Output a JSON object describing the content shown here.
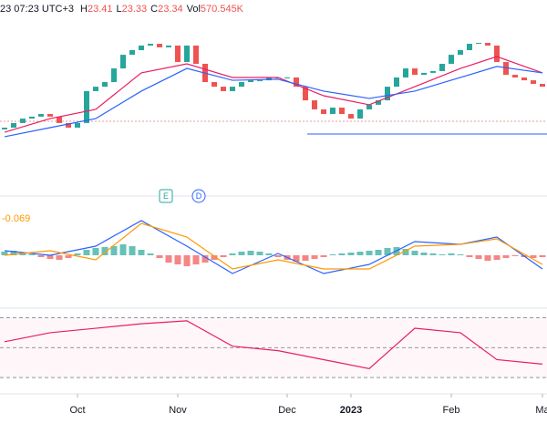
{
  "header": {
    "time": "23 07:23 UTC+3",
    "ohlc": [
      {
        "label": "H",
        "value": "23.41"
      },
      {
        "label": "L",
        "value": "23.33"
      },
      {
        "label": "C",
        "value": "23.34"
      },
      {
        "label": "Vol",
        "value": "570.545K"
      }
    ],
    "events": [
      "E",
      "D"
    ]
  },
  "chart_data": [
    {
      "type": "candlestick",
      "up_color": "#26a69a",
      "down_color": "#ef5350",
      "x": [
        0,
        1,
        2,
        3,
        4,
        5,
        6,
        7,
        8,
        9,
        10,
        11,
        12,
        13,
        14,
        15,
        16,
        17,
        18,
        19,
        20,
        21,
        22,
        23,
        24,
        25,
        26,
        27,
        28,
        29,
        30,
        31,
        32,
        33,
        34,
        35,
        36,
        37,
        38,
        39,
        40,
        41,
        42,
        43,
        44,
        45,
        46,
        47,
        48,
        49,
        50,
        51,
        52,
        53,
        54,
        55,
        56,
        57,
        58,
        59
      ],
      "open": [
        18.7,
        18.8,
        19.06,
        19.31,
        19.42,
        19.57,
        19.42,
        19.06,
        18.8,
        19.06,
        20.86,
        21.11,
        21.37,
        22.14,
        22.91,
        23.17,
        23.43,
        23.53,
        23.33,
        23.43,
        22.5,
        23.43,
        22.4,
        21.37,
        21.11,
        20.86,
        21.11,
        21.37,
        21.47,
        21.47,
        21.63,
        21.63,
        21.63,
        21.11,
        20.34,
        19.83,
        19.57,
        19.93,
        19.57,
        19.31,
        19.83,
        20.09,
        20.34,
        21.11,
        21.63,
        22.14,
        21.78,
        21.89,
        21.99,
        22.4,
        22.91,
        23.17,
        23.53,
        23.58,
        23.43,
        22.5,
        21.78,
        21.63,
        21.47,
        21.27
      ],
      "close": [
        18.8,
        19.06,
        19.31,
        19.42,
        19.57,
        19.42,
        19.06,
        18.8,
        19.06,
        20.86,
        21.11,
        21.37,
        22.14,
        22.91,
        23.17,
        23.43,
        23.53,
        23.33,
        23.43,
        22.5,
        23.43,
        22.4,
        21.37,
        21.11,
        20.86,
        21.11,
        21.37,
        21.47,
        21.47,
        21.63,
        21.63,
        21.63,
        21.11,
        20.34,
        19.83,
        19.57,
        19.93,
        19.57,
        19.31,
        19.83,
        20.09,
        20.34,
        21.11,
        21.63,
        22.14,
        21.78,
        21.89,
        21.99,
        22.4,
        22.91,
        23.17,
        23.53,
        23.58,
        23.43,
        22.5,
        21.78,
        21.63,
        21.47,
        21.27,
        21.11
      ],
      "series": [
        {
          "color": "#e91e63",
          "x": [
            0,
            5,
            10,
            15,
            20,
            25,
            30,
            35,
            40,
            45,
            50,
            54,
            59
          ],
          "values": [
            18.54,
            19.31,
            19.83,
            21.89,
            22.4,
            21.63,
            21.63,
            20.6,
            20.09,
            21.11,
            22.14,
            22.81,
            21.89
          ]
        },
        {
          "color": "#2962ff",
          "x": [
            0,
            5,
            10,
            15,
            20,
            25,
            30,
            35,
            40,
            45,
            50,
            54,
            59
          ],
          "values": [
            18.29,
            18.8,
            19.31,
            20.86,
            22.14,
            21.47,
            21.53,
            20.86,
            20.45,
            20.86,
            21.63,
            22.25,
            21.89
          ]
        }
      ],
      "xlim": [
        -0.5,
        59.5
      ],
      "ylim": [
        17,
        26
      ],
      "xticks": [
        {
          "value": 8,
          "label": "Oct"
        },
        {
          "value": 19,
          "label": "Nov"
        },
        {
          "value": 31,
          "label": "Dec"
        },
        {
          "value": 38,
          "label": "2023"
        },
        {
          "value": 49,
          "label": "Feb"
        },
        {
          "value": 59,
          "label": "Ma"
        }
      ]
    },
    {
      "type": "macd",
      "label": "-0.069",
      "up_color": "#26a69a",
      "down_color": "#ef5350",
      "x": [
        0,
        1,
        2,
        3,
        4,
        5,
        6,
        7,
        8,
        9,
        10,
        11,
        12,
        13,
        14,
        15,
        16,
        17,
        18,
        19,
        20,
        21,
        22,
        23,
        24,
        25,
        26,
        27,
        28,
        29,
        30,
        31,
        32,
        33,
        34,
        35,
        36,
        37,
        38,
        39,
        40,
        41,
        42,
        43,
        44,
        45,
        46,
        47,
        48,
        49,
        50,
        51,
        52,
        53,
        54,
        55,
        56,
        57,
        58,
        59
      ],
      "values": [
        0.04,
        0.05,
        0.03,
        0.01,
        -0.02,
        -0.04,
        -0.05,
        -0.03,
        0.02,
        0.06,
        0.08,
        0.09,
        0.1,
        0.12,
        0.1,
        0.06,
        0.02,
        -0.03,
        -0.08,
        -0.1,
        -0.12,
        -0.1,
        -0.08,
        -0.05,
        -0.02,
        0.02,
        0.04,
        0.05,
        0.04,
        0.02,
        -0.02,
        -0.05,
        -0.07,
        -0.06,
        -0.04,
        -0.02,
        0.01,
        0.02,
        0.03,
        0.04,
        0.05,
        0.06,
        0.08,
        0.09,
        0.07,
        0.05,
        0.03,
        0.02,
        0.01,
        0.02,
        0.01,
        -0.02,
        -0.04,
        -0.06,
        -0.05,
        -0.03,
        -0.01,
        -0.02,
        -0.03,
        -0.02
      ],
      "series": [
        {
          "color": "#2962ff",
          "x": [
            0,
            5,
            10,
            15,
            20,
            25,
            30,
            35,
            40,
            45,
            50,
            54,
            59
          ],
          "values": [
            0.05,
            0,
            0.1,
            0.38,
            0.1,
            -0.2,
            0.02,
            -0.2,
            -0.1,
            0.15,
            0.12,
            0.2,
            -0.15
          ]
        },
        {
          "color": "#ff9800",
          "x": [
            0,
            5,
            10,
            15,
            20,
            25,
            30,
            35,
            40,
            45,
            50,
            54,
            59
          ],
          "values": [
            0,
            0.05,
            -0.05,
            0.35,
            0.2,
            -0.15,
            -0.05,
            -0.15,
            -0.15,
            0.1,
            0.12,
            0.18,
            -0.1
          ]
        }
      ],
      "xlim": [
        -0.5,
        59.5
      ],
      "ylim": [
        -0.5,
        0.5
      ]
    },
    {
      "type": "rsi",
      "levels": [
        70,
        50,
        30
      ],
      "series": [
        {
          "color": "#e91e63",
          "x": [
            0,
            5,
            10,
            15,
            20,
            25,
            30,
            35,
            40,
            45,
            50,
            54,
            59
          ],
          "values": [
            54,
            60,
            63,
            66,
            68,
            51,
            48,
            42,
            36,
            63,
            60,
            42,
            39
          ]
        }
      ],
      "xlim": [
        -0.5,
        59.5
      ],
      "ylim": [
        24,
        74
      ]
    }
  ]
}
